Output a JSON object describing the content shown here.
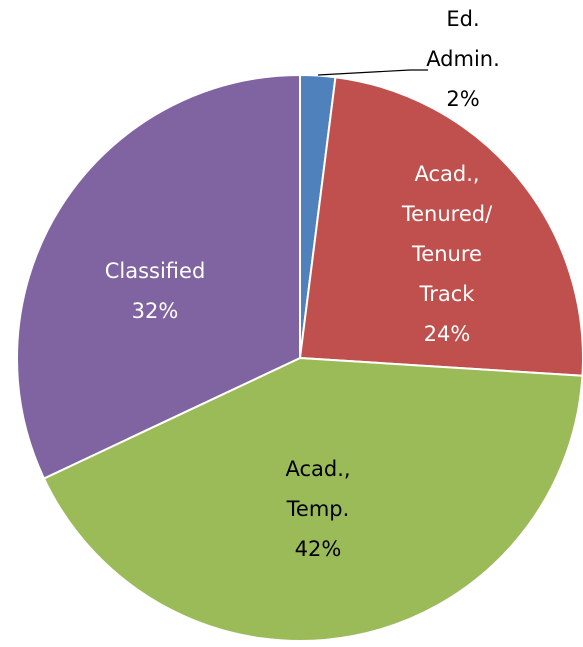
{
  "chart_data": {
    "type": "pie",
    "categories": [
      [
        "Ed.",
        "Admin."
      ],
      [
        "Acad.,",
        "Tenured/",
        "Tenure",
        "Track"
      ],
      [
        "Acad.,",
        "Temp."
      ],
      [
        "Classified"
      ]
    ],
    "values": [
      2,
      24,
      42,
      32
    ],
    "value_labels": [
      "2%",
      "24%",
      "42%",
      "32%"
    ],
    "colors": [
      "#4f81bd",
      "#c0504d",
      "#9bbb59",
      "#8064a2"
    ],
    "label_colors": [
      "#000000",
      "#ffffff",
      "#000000",
      "#ffffff"
    ]
  }
}
